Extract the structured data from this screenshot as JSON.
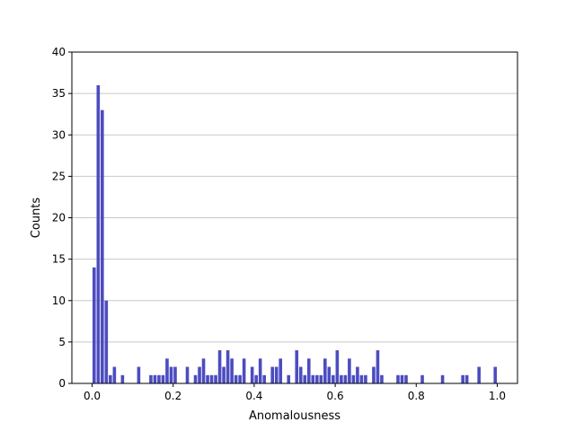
{
  "chart_data": {
    "type": "bar",
    "title": "",
    "xlabel": "Anomalousness",
    "ylabel": "Counts",
    "xlim": [
      -0.05,
      1.05
    ],
    "ylim": [
      0,
      40
    ],
    "xticks": [
      "0.0",
      "0.2",
      "0.4",
      "0.6",
      "0.8",
      "1.0"
    ],
    "yticks": [
      "0",
      "5",
      "10",
      "15",
      "20",
      "25",
      "30",
      "35",
      "40"
    ],
    "grid": "horizontal",
    "bar_color": "#4c4cc0",
    "bar_width": 0.008,
    "x": [
      0.005,
      0.015,
      0.025,
      0.035,
      0.045,
      0.055,
      0.075,
      0.115,
      0.145,
      0.155,
      0.165,
      0.175,
      0.185,
      0.195,
      0.205,
      0.235,
      0.255,
      0.265,
      0.275,
      0.285,
      0.295,
      0.305,
      0.315,
      0.325,
      0.335,
      0.345,
      0.355,
      0.365,
      0.375,
      0.395,
      0.405,
      0.415,
      0.425,
      0.445,
      0.455,
      0.465,
      0.485,
      0.505,
      0.515,
      0.525,
      0.535,
      0.545,
      0.555,
      0.565,
      0.575,
      0.585,
      0.595,
      0.605,
      0.615,
      0.625,
      0.635,
      0.645,
      0.655,
      0.665,
      0.675,
      0.695,
      0.705,
      0.715,
      0.755,
      0.765,
      0.775,
      0.815,
      0.865,
      0.915,
      0.925,
      0.955,
      0.995
    ],
    "values": [
      14,
      36,
      33,
      10,
      1,
      2,
      1,
      2,
      1,
      1,
      1,
      1,
      3,
      2,
      2,
      2,
      1,
      2,
      3,
      1,
      1,
      1,
      4,
      2,
      4,
      3,
      1,
      1,
      3,
      2,
      1,
      3,
      1,
      2,
      2,
      3,
      1,
      4,
      2,
      1,
      3,
      1,
      1,
      1,
      3,
      2,
      1,
      4,
      1,
      1,
      3,
      1,
      2,
      1,
      1,
      2,
      4,
      1,
      1,
      1,
      1,
      1,
      1,
      1,
      1,
      2,
      2
    ]
  }
}
